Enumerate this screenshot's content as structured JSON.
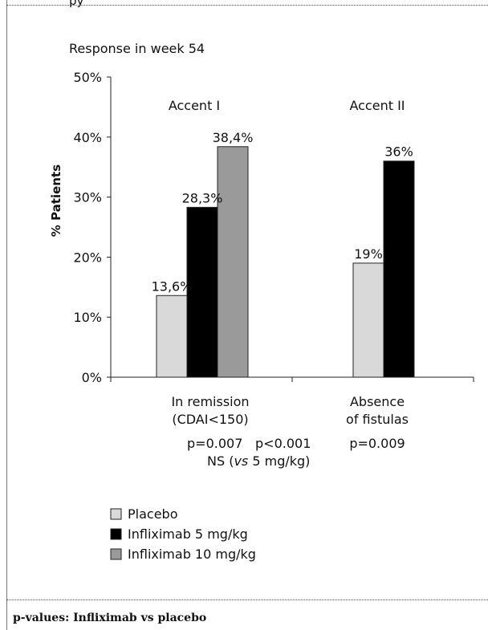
{
  "chart_data": {
    "type": "bar",
    "title": "Response in week 54",
    "ylabel": "% Patients",
    "ylim": [
      0,
      50
    ],
    "yticks": [
      "0%",
      "10%",
      "20%",
      "30%",
      "40%",
      "50%"
    ],
    "groups": [
      {
        "header": "Accent I",
        "category_lines": [
          "In remission",
          "(CDAI<150)"
        ],
        "bars": [
          {
            "series": "Placebo",
            "value": 13.6,
            "label": "13,6%"
          },
          {
            "series": "Infliximab 5 mg/kg",
            "value": 28.3,
            "label": "28,3%"
          },
          {
            "series": "Infliximab 10 mg/kg",
            "value": 38.4,
            "label": "38,4%"
          }
        ]
      },
      {
        "header": "Accent II",
        "category_lines": [
          "Absence",
          "of fistulas"
        ],
        "bars": [
          {
            "series": "Placebo",
            "value": 19,
            "label": "19%"
          },
          {
            "series": "Infliximab 5 mg/kg",
            "value": 36,
            "label": "36%"
          }
        ]
      }
    ],
    "series": [
      {
        "name": "Placebo",
        "color": "#d9d9d9"
      },
      {
        "name": "Infliximab 5 mg/kg",
        "color": "#000000"
      },
      {
        "name": "Infliximab 10 mg/kg",
        "color": "#9a9a9a"
      }
    ],
    "pvalue_lines": {
      "g1_a": "p=0.007",
      "g1_b": "p<0.001",
      "g1_c_pre": "NS (",
      "g1_c_ital": "vs",
      "g1_c_post": " 5 mg/kg)",
      "g2": "p=0.009"
    }
  },
  "top_fragment": "py",
  "footer": "p-values: Infliximab vs placebo"
}
